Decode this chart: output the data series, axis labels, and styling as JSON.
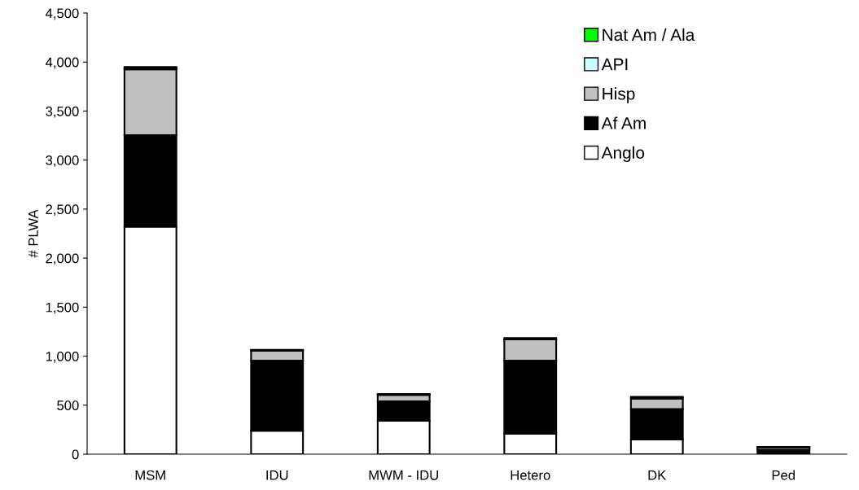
{
  "chart_data": {
    "type": "bar",
    "stacked": true,
    "ylabel": "# PLWA",
    "categories": [
      "MSM",
      "IDU",
      "MWM - IDU",
      "Hetero",
      "DK",
      "Ped"
    ],
    "series": [
      {
        "name": "Anglo",
        "color": "#ffffff",
        "values": [
          2320,
          240,
          340,
          210,
          150,
          null
        ]
      },
      {
        "name": "Af Am",
        "color": "#000000",
        "values": [
          935,
          715,
          200,
          745,
          310,
          45
        ]
      },
      {
        "name": "Hisp",
        "color": "#c0c0c0",
        "values": [
          670,
          100,
          65,
          215,
          110,
          25
        ]
      },
      {
        "name": "API",
        "color": "#ccffff",
        "values": [
          15,
          5,
          5,
          null,
          null,
          3
        ]
      },
      {
        "name": "Nat Am / Ala",
        "color": "#00ff00",
        "values": [
          10,
          5,
          5,
          15,
          15,
          2
        ]
      }
    ],
    "ylim": [
      0,
      4500
    ],
    "yticks": [
      {
        "value": 0,
        "label": "0"
      },
      {
        "value": 500,
        "label": "500"
      },
      {
        "value": 1000,
        "label": "1,000"
      },
      {
        "value": 1500,
        "label": "1,500"
      },
      {
        "value": 2000,
        "label": "2,000"
      },
      {
        "value": 2500,
        "label": "2,500"
      },
      {
        "value": 3000,
        "label": "3,000"
      },
      {
        "value": 3500,
        "label": "3,500"
      },
      {
        "value": 4000,
        "label": "4,000"
      },
      {
        "value": 4500,
        "label": "4,500"
      }
    ],
    "legend": "top right",
    "grid": false
  }
}
